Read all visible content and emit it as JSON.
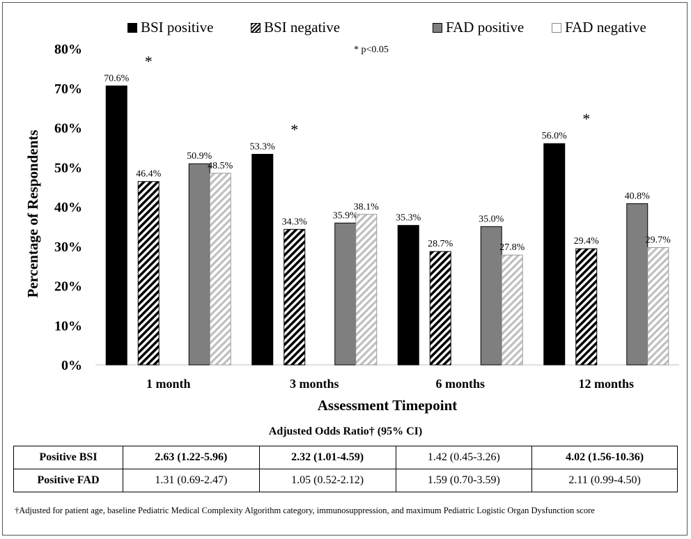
{
  "chart_data": {
    "type": "bar",
    "categories": [
      "1 month",
      "3 months",
      "6 months",
      "12 months"
    ],
    "series": [
      {
        "name": "BSI positive",
        "values": [
          70.6,
          53.3,
          35.3,
          56.0
        ],
        "color": "#000000",
        "pattern": "solid"
      },
      {
        "name": "BSI negative",
        "values": [
          46.4,
          34.3,
          28.7,
          29.4
        ],
        "color": "#000000",
        "pattern": "diagonal-hatch"
      },
      {
        "name": "FAD positive",
        "values": [
          50.9,
          35.9,
          35.0,
          40.8
        ],
        "color": "#7f7f7f",
        "pattern": "solid"
      },
      {
        "name": "FAD negative",
        "values": [
          48.5,
          38.1,
          27.8,
          29.7
        ],
        "color": "#d9d9d9",
        "pattern": "light-hatch"
      }
    ],
    "data_labels": [
      [
        "70.6%",
        "53.3%",
        "35.3%",
        "56.0%"
      ],
      [
        "46.4%",
        "34.3%",
        "28.7%",
        "29.4%"
      ],
      [
        "50.9%",
        "35.9%",
        "35.0%",
        "40.8%"
      ],
      [
        "48.5%",
        "38.1%",
        "27.8%",
        "29.7%"
      ]
    ],
    "significance_markers": [
      true,
      true,
      false,
      true
    ],
    "significance_symbol": "*",
    "xlabel": "Assessment Timepoint",
    "ylabel": "Percentage of Respondents",
    "ylim": [
      0,
      80
    ],
    "yticks": [
      "0%",
      "10%",
      "20%",
      "30%",
      "40%",
      "50%",
      "60%",
      "70%",
      "80%"
    ],
    "grid": false,
    "legend_position": "top"
  },
  "note": "* p<0.05",
  "table": {
    "title": "Adjusted Odds Ratio† (95% CI)",
    "rows": [
      {
        "label": "Positive BSI",
        "cells": [
          "2.63 (1.22-5.96)",
          "2.32 (1.01-4.59)",
          "1.42 (0.45-3.26)",
          "4.02 (1.56-10.36)"
        ]
      },
      {
        "label": "Positive FAD",
        "cells": [
          "1.31 (0.69-2.47)",
          "1.05 (0.52-2.12)",
          "1.59 (0.70-3.59)",
          "2.11 (0.99-4.50)"
        ]
      }
    ]
  },
  "footnote": "†Adjusted for patient age, baseline Pediatric Medical Complexity Algorithm category, immunosuppression, and maximum Pediatric Logistic Organ Dysfunction score"
}
